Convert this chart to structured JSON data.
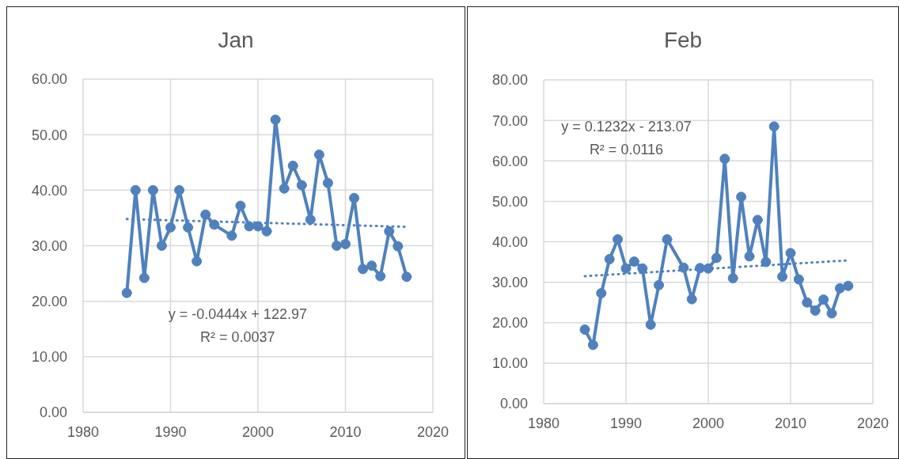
{
  "chart_data": [
    {
      "type": "line",
      "title": "Jan",
      "xlim": [
        1980,
        2020
      ],
      "xticks": [
        1980,
        1990,
        2000,
        2010,
        2020
      ],
      "ylim": [
        0,
        60
      ],
      "yticks": [
        {
          "value": 0,
          "label": "0.00"
        },
        {
          "value": 10,
          "label": "10.00"
        },
        {
          "value": 20,
          "label": "20.00"
        },
        {
          "value": 30,
          "label": "30.00"
        },
        {
          "value": 40,
          "label": "40.00"
        },
        {
          "value": 50,
          "label": "50.00"
        },
        {
          "value": 60,
          "label": "60.00"
        }
      ],
      "grid": true,
      "series": [
        {
          "color": "#4f81bd",
          "marker": "circle",
          "line_style": "solid",
          "x": [
            1985,
            1986,
            1987,
            1988,
            1989,
            1990,
            1991,
            1992,
            1993,
            1994,
            1995,
            1997,
            1998,
            1999,
            2000,
            2001,
            2002,
            2003,
            2004,
            2005,
            2006,
            2007,
            2008,
            2009,
            2010,
            2011,
            2012,
            2013,
            2014,
            2015,
            2016,
            2017
          ],
          "values": [
            21.5,
            40,
            24.2,
            40,
            30,
            33.3,
            40,
            33.3,
            27.2,
            35.6,
            33.8,
            31.8,
            37.2,
            33.5,
            33.5,
            32.6,
            52.7,
            40.3,
            44.4,
            40.9,
            34.7,
            46.4,
            41.3,
            30,
            30.3,
            38.6,
            25.8,
            26.4,
            24.5,
            32.6,
            29.9,
            24.4
          ]
        },
        {
          "type": "line",
          "color": "#4f81bd",
          "marker": "none",
          "line_style": "dotted",
          "x": [
            1985,
            2017
          ],
          "values": [
            34.8,
            33.4
          ]
        }
      ],
      "annotations": [
        "y = -0.0444x + 122.97",
        "R² = 0.0037"
      ]
    },
    {
      "type": "line",
      "title": "Feb",
      "xlim": [
        1980,
        2020
      ],
      "xticks": [
        1980,
        1990,
        2000,
        2010,
        2020
      ],
      "ylim": [
        0,
        80
      ],
      "yticks": [
        {
          "value": 0,
          "label": "0.00"
        },
        {
          "value": 10,
          "label": "10.00"
        },
        {
          "value": 20,
          "label": "20.00"
        },
        {
          "value": 30,
          "label": "30.00"
        },
        {
          "value": 40,
          "label": "40.00"
        },
        {
          "value": 50,
          "label": "50.00"
        },
        {
          "value": 60,
          "label": "60.00"
        },
        {
          "value": 70,
          "label": "70.00"
        },
        {
          "value": 80,
          "label": "80.00"
        }
      ],
      "grid": true,
      "series": [
        {
          "color": "#4f81bd",
          "marker": "circle",
          "line_style": "solid",
          "x": [
            1985,
            1986,
            1987,
            1988,
            1989,
            1990,
            1991,
            1992,
            1993,
            1994,
            1995,
            1997,
            1998,
            1999,
            2000,
            2001,
            2002,
            2003,
            2004,
            2005,
            2006,
            2007,
            2008,
            2009,
            2010,
            2011,
            2012,
            2013,
            2014,
            2015,
            2016,
            2017
          ],
          "values": [
            18.3,
            14.5,
            27.3,
            35.7,
            40.6,
            33.4,
            35.1,
            33.4,
            19.5,
            29.3,
            40.6,
            33.6,
            25.8,
            33.5,
            33.4,
            36,
            60.5,
            31,
            51.1,
            36.4,
            45.4,
            35,
            68.5,
            31.4,
            37.2,
            30.7,
            25,
            23,
            25.7,
            22.3,
            28.5,
            29.1
          ]
        },
        {
          "type": "line",
          "color": "#4f81bd",
          "marker": "none",
          "line_style": "dotted",
          "x": [
            1985,
            2017
          ],
          "values": [
            31.5,
            35.4
          ]
        }
      ],
      "annotations": [
        "y = 0.1232x - 213.07",
        "R² = 0.0116"
      ]
    }
  ]
}
